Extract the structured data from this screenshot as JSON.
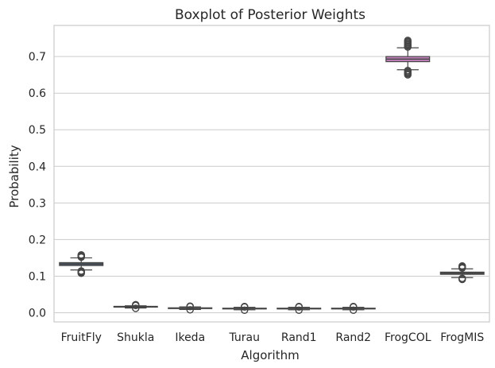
{
  "chart_data": {
    "type": "boxplot",
    "title": "Boxplot of Posterior Weights",
    "xlabel": "Algorithm",
    "ylabel": "Probability",
    "ylim": [
      -0.025,
      0.785
    ],
    "yticks": [
      0.0,
      0.1,
      0.2,
      0.3,
      0.4,
      0.5,
      0.6,
      0.7
    ],
    "ytick_labels": [
      "0.0",
      "0.1",
      "0.2",
      "0.3",
      "0.4",
      "0.5",
      "0.6",
      "0.7"
    ],
    "grid": true,
    "categories": [
      "FruitFly",
      "Shukla",
      "Ikeda",
      "Turau",
      "Rand1",
      "Rand2",
      "FrogCOL",
      "FrogMIS"
    ],
    "boxes": [
      {
        "category": "FruitFly",
        "color": "#4a5b78",
        "q1": 0.129,
        "median": 0.133,
        "q3": 0.137,
        "whisker_low": 0.117,
        "whisker_high": 0.15,
        "outliers": [
          0.108,
          0.11,
          0.112,
          0.114,
          0.152,
          0.154,
          0.156,
          0.158
        ]
      },
      {
        "category": "Shukla",
        "color": "#5b5f8c",
        "q1": 0.0155,
        "median": 0.0165,
        "q3": 0.0175,
        "whisker_low": 0.013,
        "whisker_high": 0.019,
        "outliers": [
          0.012,
          0.02,
          0.021,
          0.022
        ]
      },
      {
        "category": "Ikeda",
        "color": "#7a5f91",
        "q1": 0.0115,
        "median": 0.0125,
        "q3": 0.0135,
        "whisker_low": 0.009,
        "whisker_high": 0.016,
        "outliers": [
          0.008,
          0.017,
          0.018
        ]
      },
      {
        "category": "Turau",
        "color": "#8d6196",
        "q1": 0.0105,
        "median": 0.0115,
        "q3": 0.0125,
        "whisker_low": 0.008,
        "whisker_high": 0.015,
        "outliers": [
          0.007,
          0.016,
          0.017
        ]
      },
      {
        "category": "Rand1",
        "color": "#9c6299",
        "q1": 0.0105,
        "median": 0.0115,
        "q3": 0.0125,
        "whisker_low": 0.008,
        "whisker_high": 0.015,
        "outliers": [
          0.007,
          0.016,
          0.017
        ]
      },
      {
        "category": "Rand2",
        "color": "#a9639b",
        "q1": 0.0105,
        "median": 0.0115,
        "q3": 0.0125,
        "whisker_low": 0.008,
        "whisker_high": 0.015,
        "outliers": [
          0.007,
          0.016,
          0.017
        ]
      },
      {
        "category": "FrogCOL",
        "color": "#c27fba",
        "q1": 0.686,
        "median": 0.693,
        "q3": 0.7,
        "whisker_low": 0.664,
        "whisker_high": 0.724,
        "outliers": [
          0.65,
          0.653,
          0.656,
          0.659,
          0.662,
          0.726,
          0.729,
          0.732,
          0.735,
          0.738,
          0.741,
          0.744
        ]
      },
      {
        "category": "FrogMIS",
        "color": "#a06a9e",
        "q1": 0.105,
        "median": 0.108,
        "q3": 0.111,
        "whisker_low": 0.096,
        "whisker_high": 0.12,
        "outliers": [
          0.091,
          0.093,
          0.094,
          0.122,
          0.124,
          0.126,
          0.128
        ]
      }
    ]
  }
}
